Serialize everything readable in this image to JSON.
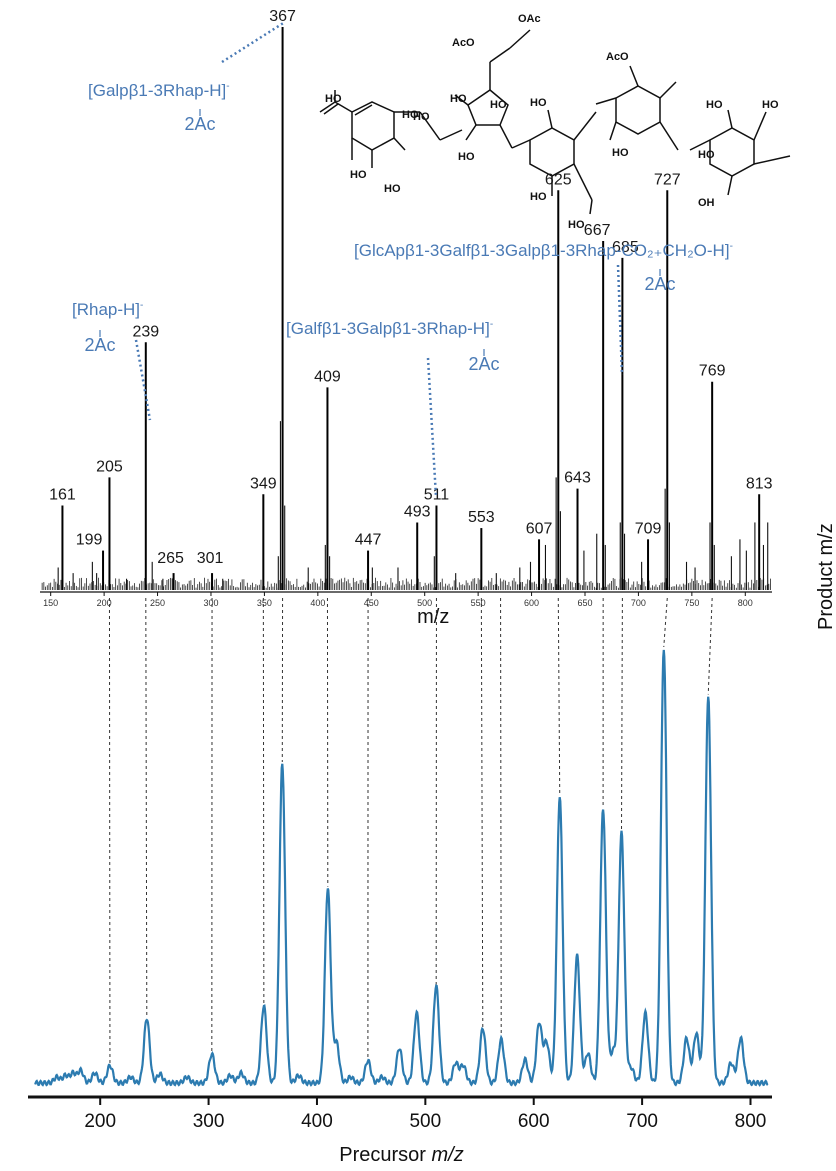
{
  "chart_data": [
    {
      "type": "line",
      "subtype": "mass-spectrum-sticks",
      "xlabel": "m/z",
      "xlim": [
        140,
        825
      ],
      "xticks": [
        150,
        200,
        250,
        300,
        350,
        400,
        450,
        500,
        550,
        600,
        650,
        700,
        750,
        800
      ],
      "peaks": [
        {
          "mz": 161,
          "intensity": 0.15,
          "label": "161"
        },
        {
          "mz": 199,
          "intensity": 0.07,
          "label": "199"
        },
        {
          "mz": 205,
          "intensity": 0.2,
          "label": "205"
        },
        {
          "mz": 239,
          "intensity": 0.44,
          "label": "239"
        },
        {
          "mz": 265,
          "intensity": 0.03,
          "label": "265"
        },
        {
          "mz": 301,
          "intensity": 0.03,
          "label": "301"
        },
        {
          "mz": 349,
          "intensity": 0.17,
          "label": "349"
        },
        {
          "mz": 367,
          "intensity": 1.0,
          "label": "367"
        },
        {
          "mz": 409,
          "intensity": 0.36,
          "label": "409"
        },
        {
          "mz": 447,
          "intensity": 0.07,
          "label": "447"
        },
        {
          "mz": 493,
          "intensity": 0.12,
          "label": "493"
        },
        {
          "mz": 511,
          "intensity": 0.15,
          "label": "511"
        },
        {
          "mz": 553,
          "intensity": 0.11,
          "label": "553"
        },
        {
          "mz": 607,
          "intensity": 0.09,
          "label": "607"
        },
        {
          "mz": 625,
          "intensity": 0.71,
          "label": "625"
        },
        {
          "mz": 643,
          "intensity": 0.18,
          "label": "643"
        },
        {
          "mz": 667,
          "intensity": 0.62,
          "label": "667"
        },
        {
          "mz": 685,
          "intensity": 0.59,
          "label": "685"
        },
        {
          "mz": 709,
          "intensity": 0.09,
          "label": "709"
        },
        {
          "mz": 727,
          "intensity": 0.71,
          "label": "727"
        },
        {
          "mz": 769,
          "intensity": 0.37,
          "label": "769"
        },
        {
          "mz": 813,
          "intensity": 0.17,
          "label": "813"
        }
      ],
      "minor_peaks": [
        {
          "mz": 157,
          "intensity": 0.04
        },
        {
          "mz": 171,
          "intensity": 0.03
        },
        {
          "mz": 189,
          "intensity": 0.05
        },
        {
          "mz": 193,
          "intensity": 0.03
        },
        {
          "mz": 221,
          "intensity": 0.02
        },
        {
          "mz": 245,
          "intensity": 0.05
        },
        {
          "mz": 255,
          "intensity": 0.02
        },
        {
          "mz": 311,
          "intensity": 0.02
        },
        {
          "mz": 365,
          "intensity": 0.3
        },
        {
          "mz": 363,
          "intensity": 0.06
        },
        {
          "mz": 369,
          "intensity": 0.15
        },
        {
          "mz": 391,
          "intensity": 0.04
        },
        {
          "mz": 407,
          "intensity": 0.08
        },
        {
          "mz": 411,
          "intensity": 0.06
        },
        {
          "mz": 451,
          "intensity": 0.04
        },
        {
          "mz": 475,
          "intensity": 0.04
        },
        {
          "mz": 509,
          "intensity": 0.06
        },
        {
          "mz": 529,
          "intensity": 0.03
        },
        {
          "mz": 567,
          "intensity": 0.03
        },
        {
          "mz": 589,
          "intensity": 0.04
        },
        {
          "mz": 599,
          "intensity": 0.05
        },
        {
          "mz": 613,
          "intensity": 0.08
        },
        {
          "mz": 623,
          "intensity": 0.2
        },
        {
          "mz": 627,
          "intensity": 0.14
        },
        {
          "mz": 649,
          "intensity": 0.07
        },
        {
          "mz": 661,
          "intensity": 0.1
        },
        {
          "mz": 669,
          "intensity": 0.08
        },
        {
          "mz": 683,
          "intensity": 0.12
        },
        {
          "mz": 687,
          "intensity": 0.1
        },
        {
          "mz": 703,
          "intensity": 0.05
        },
        {
          "mz": 725,
          "intensity": 0.18
        },
        {
          "mz": 729,
          "intensity": 0.12
        },
        {
          "mz": 745,
          "intensity": 0.05
        },
        {
          "mz": 753,
          "intensity": 0.04
        },
        {
          "mz": 767,
          "intensity": 0.12
        },
        {
          "mz": 771,
          "intensity": 0.08
        },
        {
          "mz": 787,
          "intensity": 0.06
        },
        {
          "mz": 795,
          "intensity": 0.09
        },
        {
          "mz": 801,
          "intensity": 0.07
        },
        {
          "mz": 809,
          "intensity": 0.12
        },
        {
          "mz": 817,
          "intensity": 0.08
        },
        {
          "mz": 821,
          "intensity": 0.12
        }
      ]
    },
    {
      "type": "line",
      "subtype": "precursor-profile",
      "xlabel_plain": "Precursor ",
      "xlabel_italic": "m/z",
      "xlim": [
        138,
        818
      ],
      "ylim": [
        0,
        1.0
      ],
      "xticks": [
        200,
        300,
        400,
        500,
        600,
        700,
        800
      ],
      "series": [
        {
          "color": "#2c7bb0",
          "peaks": [
            {
              "mz": 160,
              "h": 0.012
            },
            {
              "mz": 168,
              "h": 0.015
            },
            {
              "mz": 175,
              "h": 0.02
            },
            {
              "mz": 182,
              "h": 0.025
            },
            {
              "mz": 195,
              "h": 0.02
            },
            {
              "mz": 209,
              "h": 0.035
            },
            {
              "mz": 228,
              "h": 0.012
            },
            {
              "mz": 243,
              "h": 0.13
            },
            {
              "mz": 255,
              "h": 0.018
            },
            {
              "mz": 280,
              "h": 0.012
            },
            {
              "mz": 303,
              "h": 0.058
            },
            {
              "mz": 320,
              "h": 0.015
            },
            {
              "mz": 330,
              "h": 0.02
            },
            {
              "mz": 351,
              "h": 0.155
            },
            {
              "mz": 368,
              "h": 0.64
            },
            {
              "mz": 383,
              "h": 0.015
            },
            {
              "mz": 410,
              "h": 0.39
            },
            {
              "mz": 418,
              "h": 0.08
            },
            {
              "mz": 431,
              "h": 0.012
            },
            {
              "mz": 447,
              "h": 0.045
            },
            {
              "mz": 460,
              "h": 0.012
            },
            {
              "mz": 476,
              "h": 0.07
            },
            {
              "mz": 492,
              "h": 0.14
            },
            {
              "mz": 510,
              "h": 0.195
            },
            {
              "mz": 528,
              "h": 0.04
            },
            {
              "mz": 535,
              "h": 0.035
            },
            {
              "mz": 553,
              "h": 0.11
            },
            {
              "mz": 570,
              "h": 0.087
            },
            {
              "mz": 592,
              "h": 0.047
            },
            {
              "mz": 605,
              "h": 0.12
            },
            {
              "mz": 612,
              "h": 0.08
            },
            {
              "mz": 624,
              "h": 0.575
            },
            {
              "mz": 640,
              "h": 0.255
            },
            {
              "mz": 650,
              "h": 0.06
            },
            {
              "mz": 664,
              "h": 0.55
            },
            {
              "mz": 673,
              "h": 0.06
            },
            {
              "mz": 681,
              "h": 0.5
            },
            {
              "mz": 690,
              "h": 0.03
            },
            {
              "mz": 703,
              "h": 0.14
            },
            {
              "mz": 720,
              "h": 0.87
            },
            {
              "mz": 741,
              "h": 0.09
            },
            {
              "mz": 750,
              "h": 0.1
            },
            {
              "mz": 761,
              "h": 0.775
            },
            {
              "mz": 782,
              "h": 0.04
            },
            {
              "mz": 791,
              "h": 0.09
            }
          ]
        }
      ]
    }
  ],
  "right_axis_fragment": "Product m/z",
  "annotations": [
    {
      "text": "[Galpβ1-3Rhap-H]",
      "sup": "-",
      "sub": "2Ac"
    },
    {
      "text": "[Rhap-H]",
      "sup": "-",
      "sub": "2Ac"
    },
    {
      "text": "[Galfβ1-3Galpβ1-3Rhap-H]",
      "sup": "-",
      "sub": "2Ac"
    },
    {
      "text": "[GlcApβ1-3Galfβ1-3Galpβ1-3Rhap-CO₂₊CH₂O-H]",
      "sup": "-",
      "sub": "2Ac"
    }
  ],
  "structure_labels": [
    "OAc",
    "AcO",
    "HO",
    "HO",
    "HO",
    "HO",
    "HO",
    "AcO",
    "HO",
    "HO",
    "HO",
    "HO",
    "HO",
    "HO",
    "HO",
    "OH",
    "HO",
    "HO",
    "HO"
  ],
  "colors": {
    "annotation": "#4a7ab5",
    "profile": "#2c7bb0",
    "spectrum": "#111111"
  }
}
